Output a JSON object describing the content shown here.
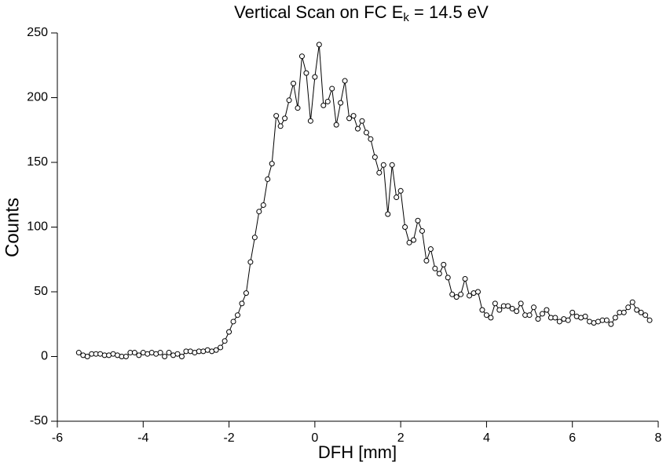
{
  "chart_data": {
    "type": "line",
    "title": [
      "Vertical Scan on FC E",
      "k",
      " = 14.5 eV"
    ],
    "x_label": "DFH [mm]",
    "y_label": "Counts",
    "color": "#000000",
    "marker": "circle",
    "x": [
      -5.5,
      -5.4,
      -5.3,
      -5.2,
      -5.1,
      -5.0,
      -4.9,
      -4.8,
      -4.7,
      -4.6,
      -4.5,
      -4.4,
      -4.3,
      -4.2,
      -4.1,
      -4.0,
      -3.9,
      -3.8,
      -3.7,
      -3.6,
      -3.5,
      -3.4,
      -3.3,
      -3.2,
      -3.1,
      -3.0,
      -2.9,
      -2.8,
      -2.7,
      -2.6,
      -2.5,
      -2.4,
      -2.3,
      -2.2,
      -2.1,
      -2.0,
      -1.9,
      -1.8,
      -1.7,
      -1.6,
      -1.5,
      -1.4,
      -1.3,
      -1.2,
      -1.1,
      -1.0,
      -0.9,
      -0.8,
      -0.7,
      -0.6,
      -0.5,
      -0.4,
      -0.3,
      -0.2,
      -0.1,
      0.0,
      0.1,
      0.2,
      0.3,
      0.4,
      0.5,
      0.6,
      0.7,
      0.8,
      0.9,
      1.0,
      1.1,
      1.2,
      1.3,
      1.4,
      1.5,
      1.6,
      1.7,
      1.8,
      1.9,
      2.0,
      2.1,
      2.2,
      2.3,
      2.4,
      2.5,
      2.6,
      2.7,
      2.8,
      2.9,
      3.0,
      3.1,
      3.2,
      3.3,
      3.4,
      3.5,
      3.6,
      3.7,
      3.8,
      3.9,
      4.0,
      4.1,
      4.2,
      4.3,
      4.4,
      4.5,
      4.6,
      4.7,
      4.8,
      4.9,
      5.0,
      5.1,
      5.2,
      5.3,
      5.4,
      5.5,
      5.6,
      5.7,
      5.8,
      5.9,
      6.0,
      6.1,
      6.2,
      6.3,
      6.4,
      6.5,
      6.6,
      6.7,
      6.8,
      6.9,
      7.0,
      7.1,
      7.2,
      7.3,
      7.4,
      7.5,
      7.6,
      7.7,
      7.8
    ],
    "values": [
      3,
      1,
      0,
      2,
      2,
      2,
      1,
      1,
      2,
      1,
      0,
      0,
      3,
      3,
      1,
      3,
      2,
      3,
      2,
      3,
      0,
      3,
      1,
      2,
      0,
      4,
      4,
      3,
      4,
      4,
      5,
      4,
      5,
      7,
      12,
      19,
      27,
      32,
      41,
      49,
      73,
      92,
      112,
      117,
      137,
      149,
      186,
      178,
      184,
      198,
      211,
      192,
      232,
      219,
      182,
      216,
      241,
      194,
      197,
      207,
      179,
      196,
      213,
      184,
      186,
      176,
      182,
      173,
      168,
      154,
      142,
      148,
      110,
      148,
      123,
      128,
      100,
      88,
      90,
      105,
      97,
      74,
      83,
      68,
      64,
      71,
      61,
      48,
      46,
      48,
      60,
      47,
      49,
      50,
      36,
      32,
      30,
      41,
      36,
      39,
      39,
      37,
      35,
      41,
      32,
      32,
      38,
      29,
      33,
      36,
      30,
      30,
      27,
      29,
      28,
      34,
      31,
      30,
      31,
      27,
      26,
      27,
      28,
      28,
      25,
      30,
      34,
      34,
      38,
      42,
      36,
      34,
      32,
      28
    ],
    "xlim": [
      -6,
      8
    ],
    "xticks": [
      -6,
      -4,
      -2,
      0,
      2,
      4,
      6,
      8
    ],
    "ylim": [
      -50,
      250
    ],
    "yticks": [
      -50,
      0,
      50,
      100,
      150,
      200,
      250
    ]
  }
}
